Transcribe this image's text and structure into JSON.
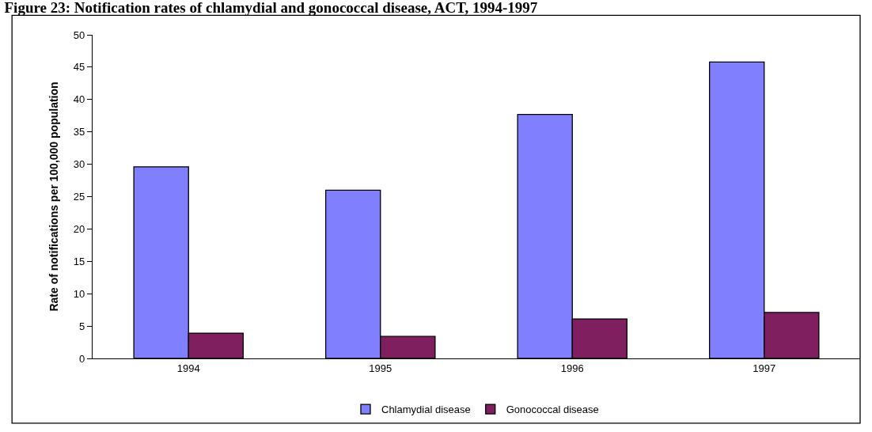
{
  "chart_data": {
    "type": "bar",
    "title": "Figure 23: Notification rates of chlamydial and gonococcal disease, ACT, 1994-1997",
    "ylabel": "Rate of notifications per 100,000 population",
    "categories": [
      "1994",
      "1995",
      "1996",
      "1997"
    ],
    "series": [
      {
        "name": "Chlamydial disease",
        "color": "#8080ff",
        "values": [
          29.6,
          26.0,
          37.7,
          45.8
        ]
      },
      {
        "name": "Gonococcal disease",
        "color": "#7f1f5f",
        "values": [
          3.9,
          3.4,
          6.1,
          7.1
        ]
      }
    ],
    "ylim": [
      0,
      50
    ],
    "yticks": [
      0,
      5,
      10,
      15,
      20,
      25,
      30,
      35,
      40,
      45,
      50
    ],
    "grid": false,
    "legend": "bottom"
  }
}
